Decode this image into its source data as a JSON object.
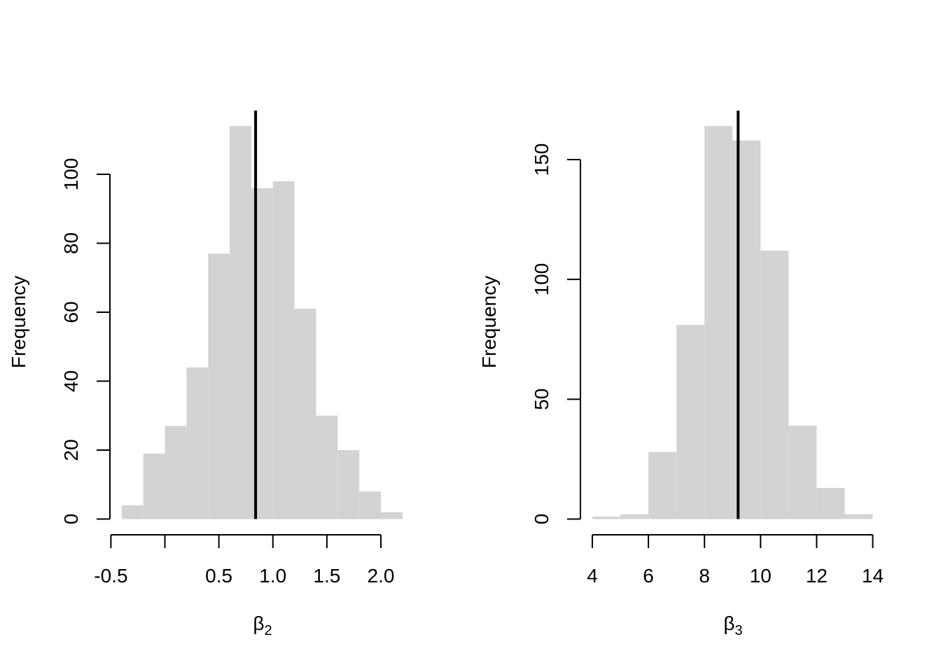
{
  "chart_data": [
    {
      "type": "histogram",
      "ylabel": "Frequency",
      "xlabel": "β",
      "xlabel_sub": "2",
      "x_ticks": [
        -0.5,
        0.5,
        1.0,
        1.5,
        2.0
      ],
      "x_tick_labels": [
        "-0.5",
        "0.5",
        "1.0",
        "1.5",
        "2.0"
      ],
      "y_ticks": [
        0,
        20,
        40,
        60,
        80,
        100
      ],
      "y_tick_labels": [
        "0",
        "20",
        "40",
        "60",
        "80",
        "100"
      ],
      "bins": [
        {
          "x0": -0.4,
          "x1": -0.2,
          "count": 4
        },
        {
          "x0": -0.2,
          "x1": 0.0,
          "count": 19
        },
        {
          "x0": 0.0,
          "x1": 0.2,
          "count": 27
        },
        {
          "x0": 0.2,
          "x1": 0.4,
          "count": 44
        },
        {
          "x0": 0.4,
          "x1": 0.6,
          "count": 77
        },
        {
          "x0": 0.6,
          "x1": 0.8,
          "count": 114
        },
        {
          "x0": 0.8,
          "x1": 1.0,
          "count": 96
        },
        {
          "x0": 1.0,
          "x1": 1.2,
          "count": 98
        },
        {
          "x0": 1.2,
          "x1": 1.4,
          "count": 61
        },
        {
          "x0": 1.4,
          "x1": 1.6,
          "count": 30
        },
        {
          "x0": 1.6,
          "x1": 1.8,
          "count": 20
        },
        {
          "x0": 1.8,
          "x1": 2.0,
          "count": 8
        },
        {
          "x0": 2.0,
          "x1": 2.2,
          "count": 2
        }
      ],
      "reference_line_x": 0.84,
      "bar_color": "#d3d3d3",
      "line_color": "#000000"
    },
    {
      "type": "histogram",
      "ylabel": "Frequency",
      "xlabel": "β",
      "xlabel_sub": "3",
      "x_ticks": [
        4,
        6,
        8,
        10,
        12,
        14
      ],
      "x_tick_labels": [
        "4",
        "6",
        "8",
        "10",
        "12",
        "14"
      ],
      "y_ticks": [
        0,
        50,
        100,
        150
      ],
      "y_tick_labels": [
        "0",
        "50",
        "100",
        "150"
      ],
      "bins": [
        {
          "x0": 4,
          "x1": 5,
          "count": 1
        },
        {
          "x0": 5,
          "x1": 6,
          "count": 2
        },
        {
          "x0": 6,
          "x1": 7,
          "count": 28
        },
        {
          "x0": 7,
          "x1": 8,
          "count": 81
        },
        {
          "x0": 8,
          "x1": 9,
          "count": 164
        },
        {
          "x0": 9,
          "x1": 10,
          "count": 158
        },
        {
          "x0": 10,
          "x1": 11,
          "count": 112
        },
        {
          "x0": 11,
          "x1": 12,
          "count": 39
        },
        {
          "x0": 12,
          "x1": 13,
          "count": 13
        },
        {
          "x0": 13,
          "x1": 14,
          "count": 2
        }
      ],
      "reference_line_x": 9.2,
      "bar_color": "#d3d3d3",
      "line_color": "#000000"
    }
  ]
}
